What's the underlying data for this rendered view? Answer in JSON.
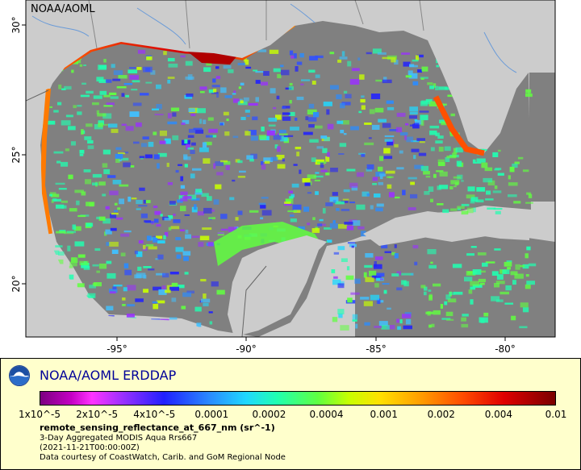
{
  "map": {
    "credit": "NOAA/AOML",
    "lat_ticks": [
      {
        "value": 30,
        "label": "30°"
      },
      {
        "value": 25,
        "label": "25°"
      },
      {
        "value": 20,
        "label": "20°"
      }
    ],
    "lon_ticks": [
      {
        "value": -95,
        "label": "-95°"
      },
      {
        "value": -90,
        "label": "-90°"
      },
      {
        "value": -85,
        "label": "-85°"
      },
      {
        "value": -80,
        "label": "-80°"
      }
    ],
    "colors": {
      "land": "#cccccc",
      "nodata": "#808080",
      "border": "#666666",
      "river": "#6a9bd8"
    }
  },
  "legend": {
    "title": "NOAA/AOML ERDDAP",
    "colorbar_labels": [
      "1x10^-5",
      "2x10^-5",
      "4x10^-5",
      "0.0001",
      "0.0002",
      "0.0004",
      "0.001",
      "0.002",
      "0.004",
      "0.01"
    ],
    "variable": "remote_sensing_reflectance_at_667_nm (sr^-1)",
    "lines": [
      "3-Day Aggregated MODIS Aqua Rrs667",
      "(2021-11-21T00:00:00Z)",
      "Data courtesy of CoastWatch, Carib. and GoM Regional Node"
    ]
  }
}
